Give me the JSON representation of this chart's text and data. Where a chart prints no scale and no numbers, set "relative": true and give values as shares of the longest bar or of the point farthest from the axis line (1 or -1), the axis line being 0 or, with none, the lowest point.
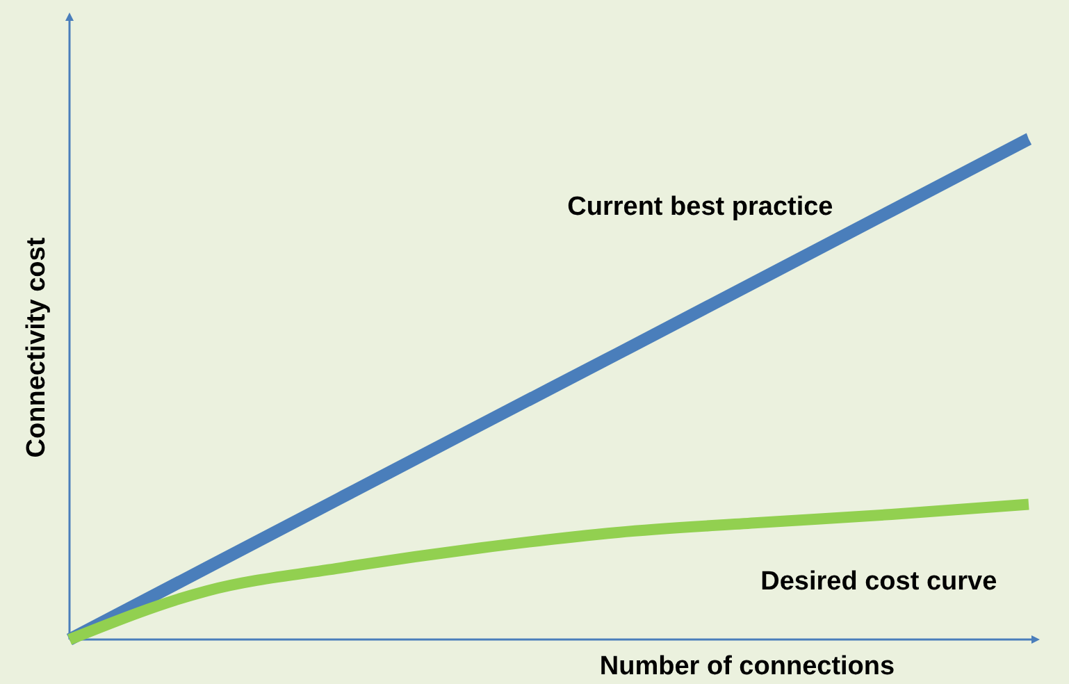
{
  "chart_data": {
    "type": "line",
    "relative": true,
    "xlabel": "Number of connections",
    "ylabel": "Connectivity cost",
    "categories": [
      null,
      null,
      null,
      null,
      null,
      null,
      null,
      null
    ],
    "series": [
      {
        "name": "Current best practice",
        "color": "#4a7ebb",
        "values": [
          0,
          0.143,
          0.286,
          0.429,
          0.571,
          0.714,
          0.857,
          1
        ]
      },
      {
        "name": "Desired cost curve",
        "color": "#92d050",
        "values": [
          0,
          0.097,
          0.144,
          0.183,
          0.214,
          0.233,
          0.25,
          0.27
        ]
      }
    ],
    "grid": false,
    "marker": "none",
    "line_style": "solid"
  }
}
